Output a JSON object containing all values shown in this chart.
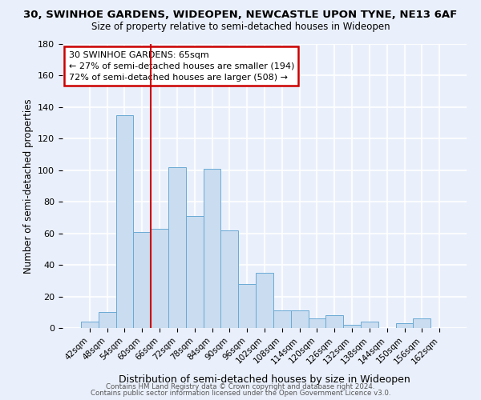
{
  "title1": "30, SWINHOE GARDENS, WIDEOPEN, NEWCASTLE UPON TYNE, NE13 6AF",
  "title2": "Size of property relative to semi-detached houses in Wideopen",
  "xlabel": "Distribution of semi-detached houses by size in Wideopen",
  "ylabel": "Number of semi-detached properties",
  "bar_labels": [
    "42sqm",
    "48sqm",
    "54sqm",
    "60sqm",
    "66sqm",
    "72sqm",
    "78sqm",
    "84sqm",
    "90sqm",
    "96sqm",
    "102sqm",
    "108sqm",
    "114sqm",
    "120sqm",
    "126sqm",
    "132sqm",
    "138sqm",
    "144sqm",
    "150sqm",
    "156sqm",
    "162sqm"
  ],
  "bar_values": [
    4,
    10,
    135,
    61,
    63,
    102,
    71,
    101,
    62,
    28,
    35,
    11,
    11,
    6,
    8,
    2,
    4,
    0,
    3,
    6,
    0
  ],
  "bar_color": "#c9dcf0",
  "bar_edge_color": "#6aaad4",
  "marker_label": "30 SWINHOE GARDENS: 65sqm",
  "annotation_line1": "← 27% of semi-detached houses are smaller (194)",
  "annotation_line2": "72% of semi-detached houses are larger (508) →",
  "annotation_bg": "#ffffff",
  "annotation_border": "#cc0000",
  "ylim": [
    0,
    180
  ],
  "yticks": [
    0,
    20,
    40,
    60,
    80,
    100,
    120,
    140,
    160,
    180
  ],
  "bg_color": "#eaf0fb",
  "grid_color": "#ffffff",
  "footer1": "Contains HM Land Registry data © Crown copyright and database right 2024.",
  "footer2": "Contains public sector information licensed under the Open Government Licence v3.0.",
  "red_line_color": "#cc0000",
  "red_line_index": 4
}
